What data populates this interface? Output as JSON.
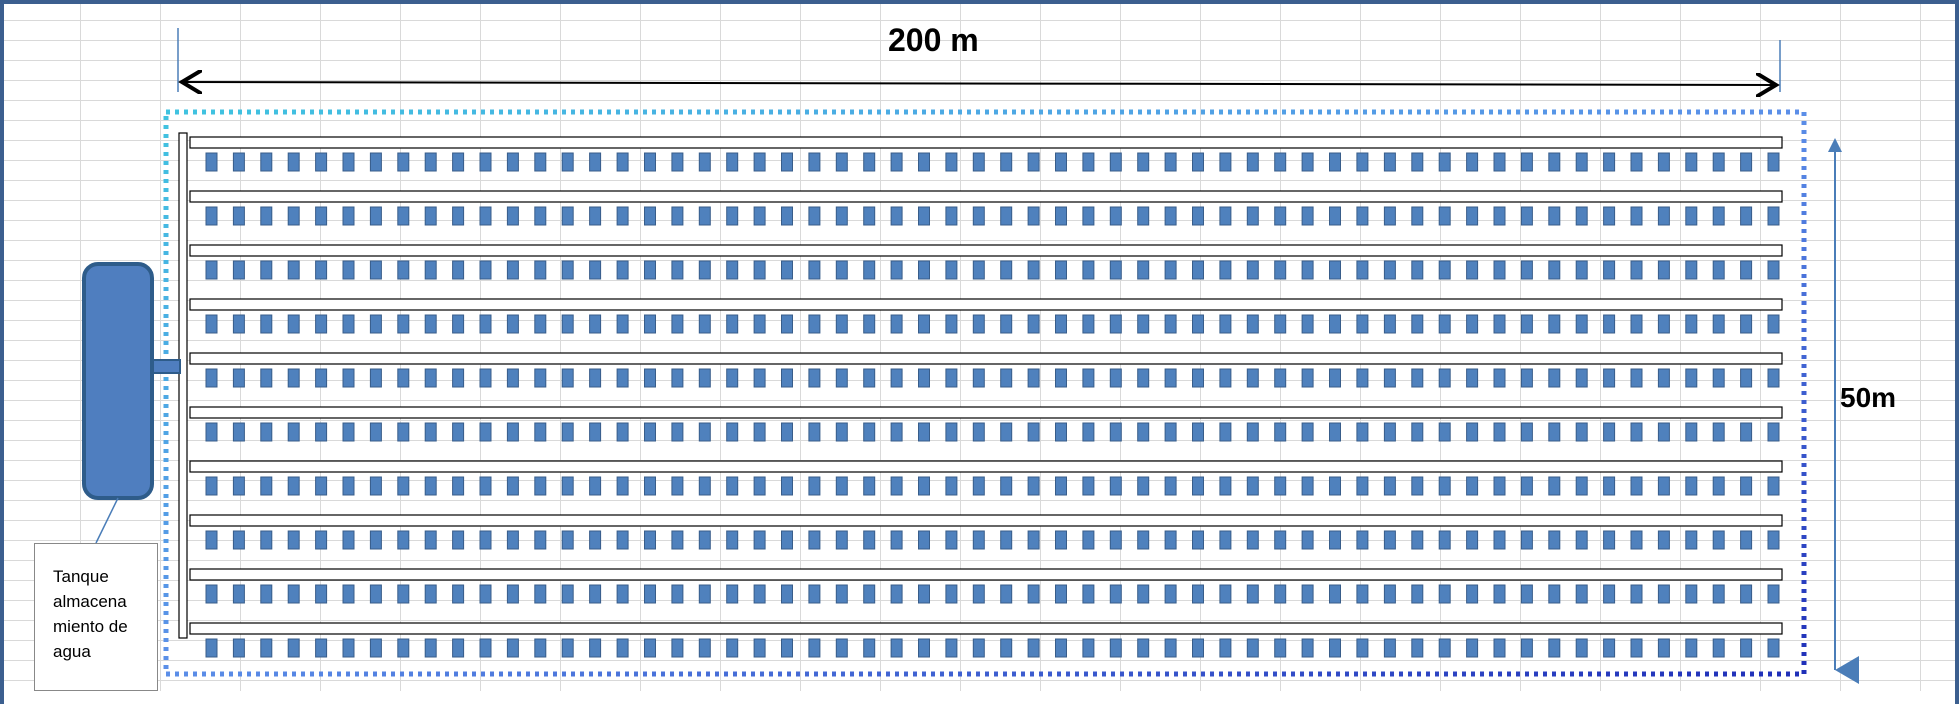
{
  "dimensions": {
    "length_label": "200 m",
    "width_label": "50m"
  },
  "tank": {
    "label": "Tanque\nalmacena\nmiento de\nagua"
  },
  "layout": {
    "pipe_rows": 10,
    "emitters_per_row": 58
  },
  "colors": {
    "emitter": "#4f81bd",
    "emitter_border": "#385d8a",
    "tank": "#4f7ebf",
    "tank_border": "#2e5c8a",
    "arrow": "#4a7db8",
    "frame": "#3c5f8f"
  }
}
